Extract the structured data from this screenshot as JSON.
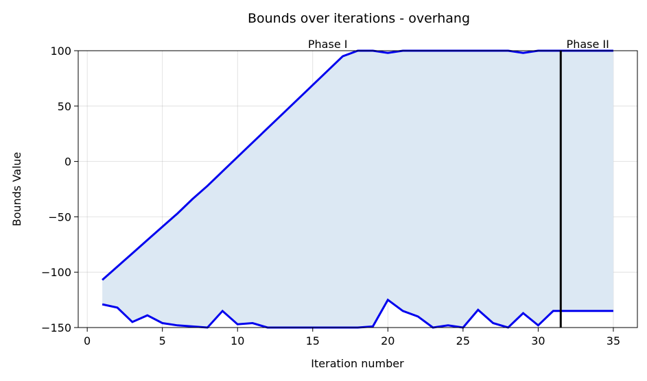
{
  "chart_data": {
    "type": "line",
    "title": "Bounds over iterations - overhang",
    "xlabel": "Iteration number",
    "ylabel": "Bounds Value",
    "xlim": [
      -0.6,
      36.6
    ],
    "ylim": [
      -150,
      100
    ],
    "xticks": [
      0,
      5,
      10,
      15,
      20,
      25,
      30,
      35
    ],
    "yticks": [
      -150,
      -100,
      -50,
      0,
      50,
      100
    ],
    "xtick_labels": [
      "0",
      "5",
      "10",
      "15",
      "20",
      "25",
      "30",
      "35"
    ],
    "ytick_labels": [
      "−150",
      "−100",
      "−50",
      "0",
      "50",
      "100"
    ],
    "grid": true,
    "x": [
      1,
      2,
      3,
      4,
      5,
      6,
      7,
      8,
      9,
      10,
      11,
      12,
      13,
      14,
      15,
      16,
      17,
      18,
      19,
      20,
      21,
      22,
      23,
      24,
      25,
      26,
      27,
      28,
      29,
      30,
      31,
      32,
      33,
      34,
      35
    ],
    "series": [
      {
        "role": "upper",
        "color": "#0000ee",
        "values": [
          -107,
          -95,
          -83,
          -71,
          -59,
          -47,
          -34,
          -22,
          -9,
          4,
          17,
          30,
          43,
          56,
          69,
          82,
          95,
          100,
          100,
          98,
          100,
          100,
          100,
          100,
          100,
          100,
          100,
          100,
          98,
          100,
          100,
          100,
          100,
          100,
          100
        ]
      },
      {
        "role": "lower",
        "color": "#0000ee",
        "values": [
          -129,
          -132,
          -145,
          -139,
          -146,
          -148,
          -149,
          -150,
          -135,
          -147,
          -146,
          -150,
          -150,
          -150,
          -150,
          -150,
          -150,
          -150,
          -149,
          -125,
          -135,
          -140,
          -150,
          -148,
          -150,
          -134,
          -146,
          -150,
          -137,
          -148,
          -135,
          -135,
          -135,
          -135,
          -135
        ]
      }
    ],
    "fill_between": {
      "color": "#dce8f3"
    },
    "vline": {
      "x": 31.5,
      "color": "#000000"
    },
    "annotations": [
      {
        "text": "Phase I",
        "x": 16
      },
      {
        "text": "Phase II",
        "x": 33.3
      }
    ]
  }
}
